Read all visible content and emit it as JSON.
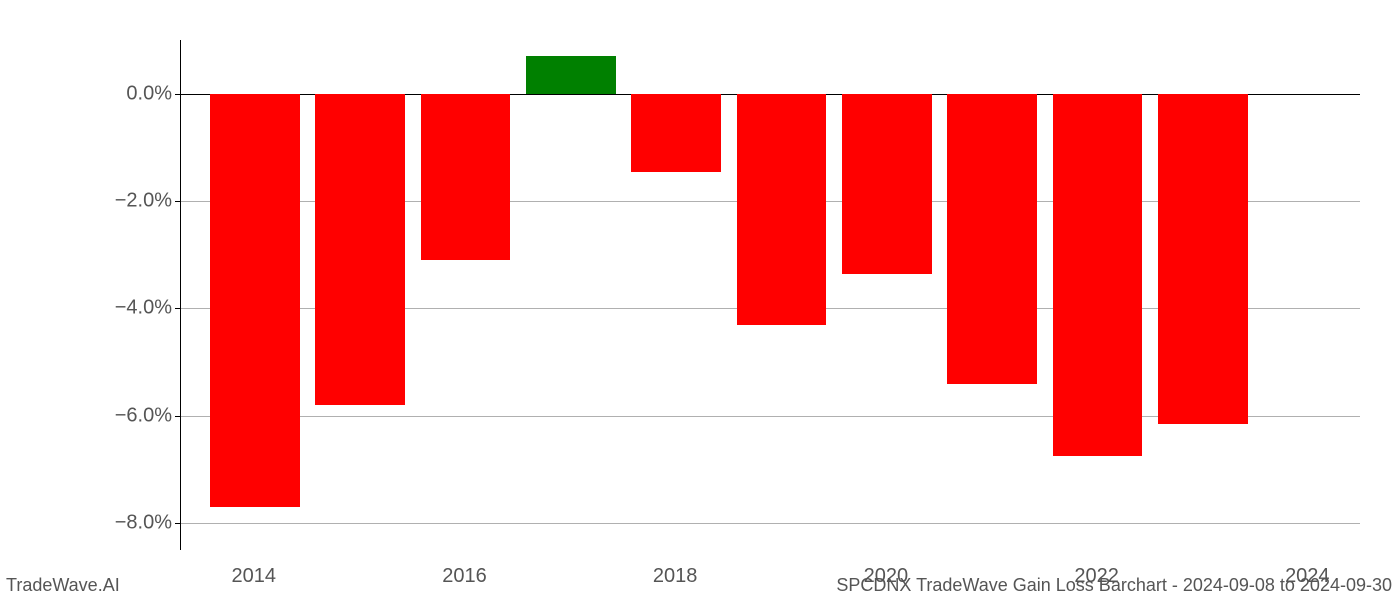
{
  "chart": {
    "type": "bar",
    "years": [
      2014,
      2015,
      2016,
      2017,
      2018,
      2019,
      2020,
      2021,
      2022,
      2023
    ],
    "values": [
      -7.7,
      -5.8,
      -3.1,
      0.7,
      -1.45,
      -4.3,
      -3.35,
      -5.4,
      -6.75,
      -6.15
    ],
    "positive_color": "#008000",
    "negative_color": "#ff0000",
    "background_color": "#ffffff",
    "grid_color": "#b0b0b0",
    "axis_color": "#000000",
    "tick_label_color": "#555555",
    "tick_fontsize": 20,
    "y_min": -8.5,
    "y_max": 1.0,
    "y_ticks": [
      0.0,
      -2.0,
      -4.0,
      -6.0,
      -8.0
    ],
    "y_tick_labels": [
      "0.0%",
      "−2.0%",
      "−4.0%",
      "−6.0%",
      "−8.0%"
    ],
    "x_ticks": [
      2014,
      2016,
      2018,
      2020,
      2022,
      2024
    ],
    "x_tick_labels": [
      "2014",
      "2016",
      "2018",
      "2020",
      "2022",
      "2024"
    ],
    "x_min": 2013.3,
    "x_max": 2024.5,
    "bar_width_years": 0.85
  },
  "footer": {
    "left": "TradeWave.AI",
    "right": "SPCDNX TradeWave Gain Loss Barchart - 2024-09-08 to 2024-09-30"
  }
}
